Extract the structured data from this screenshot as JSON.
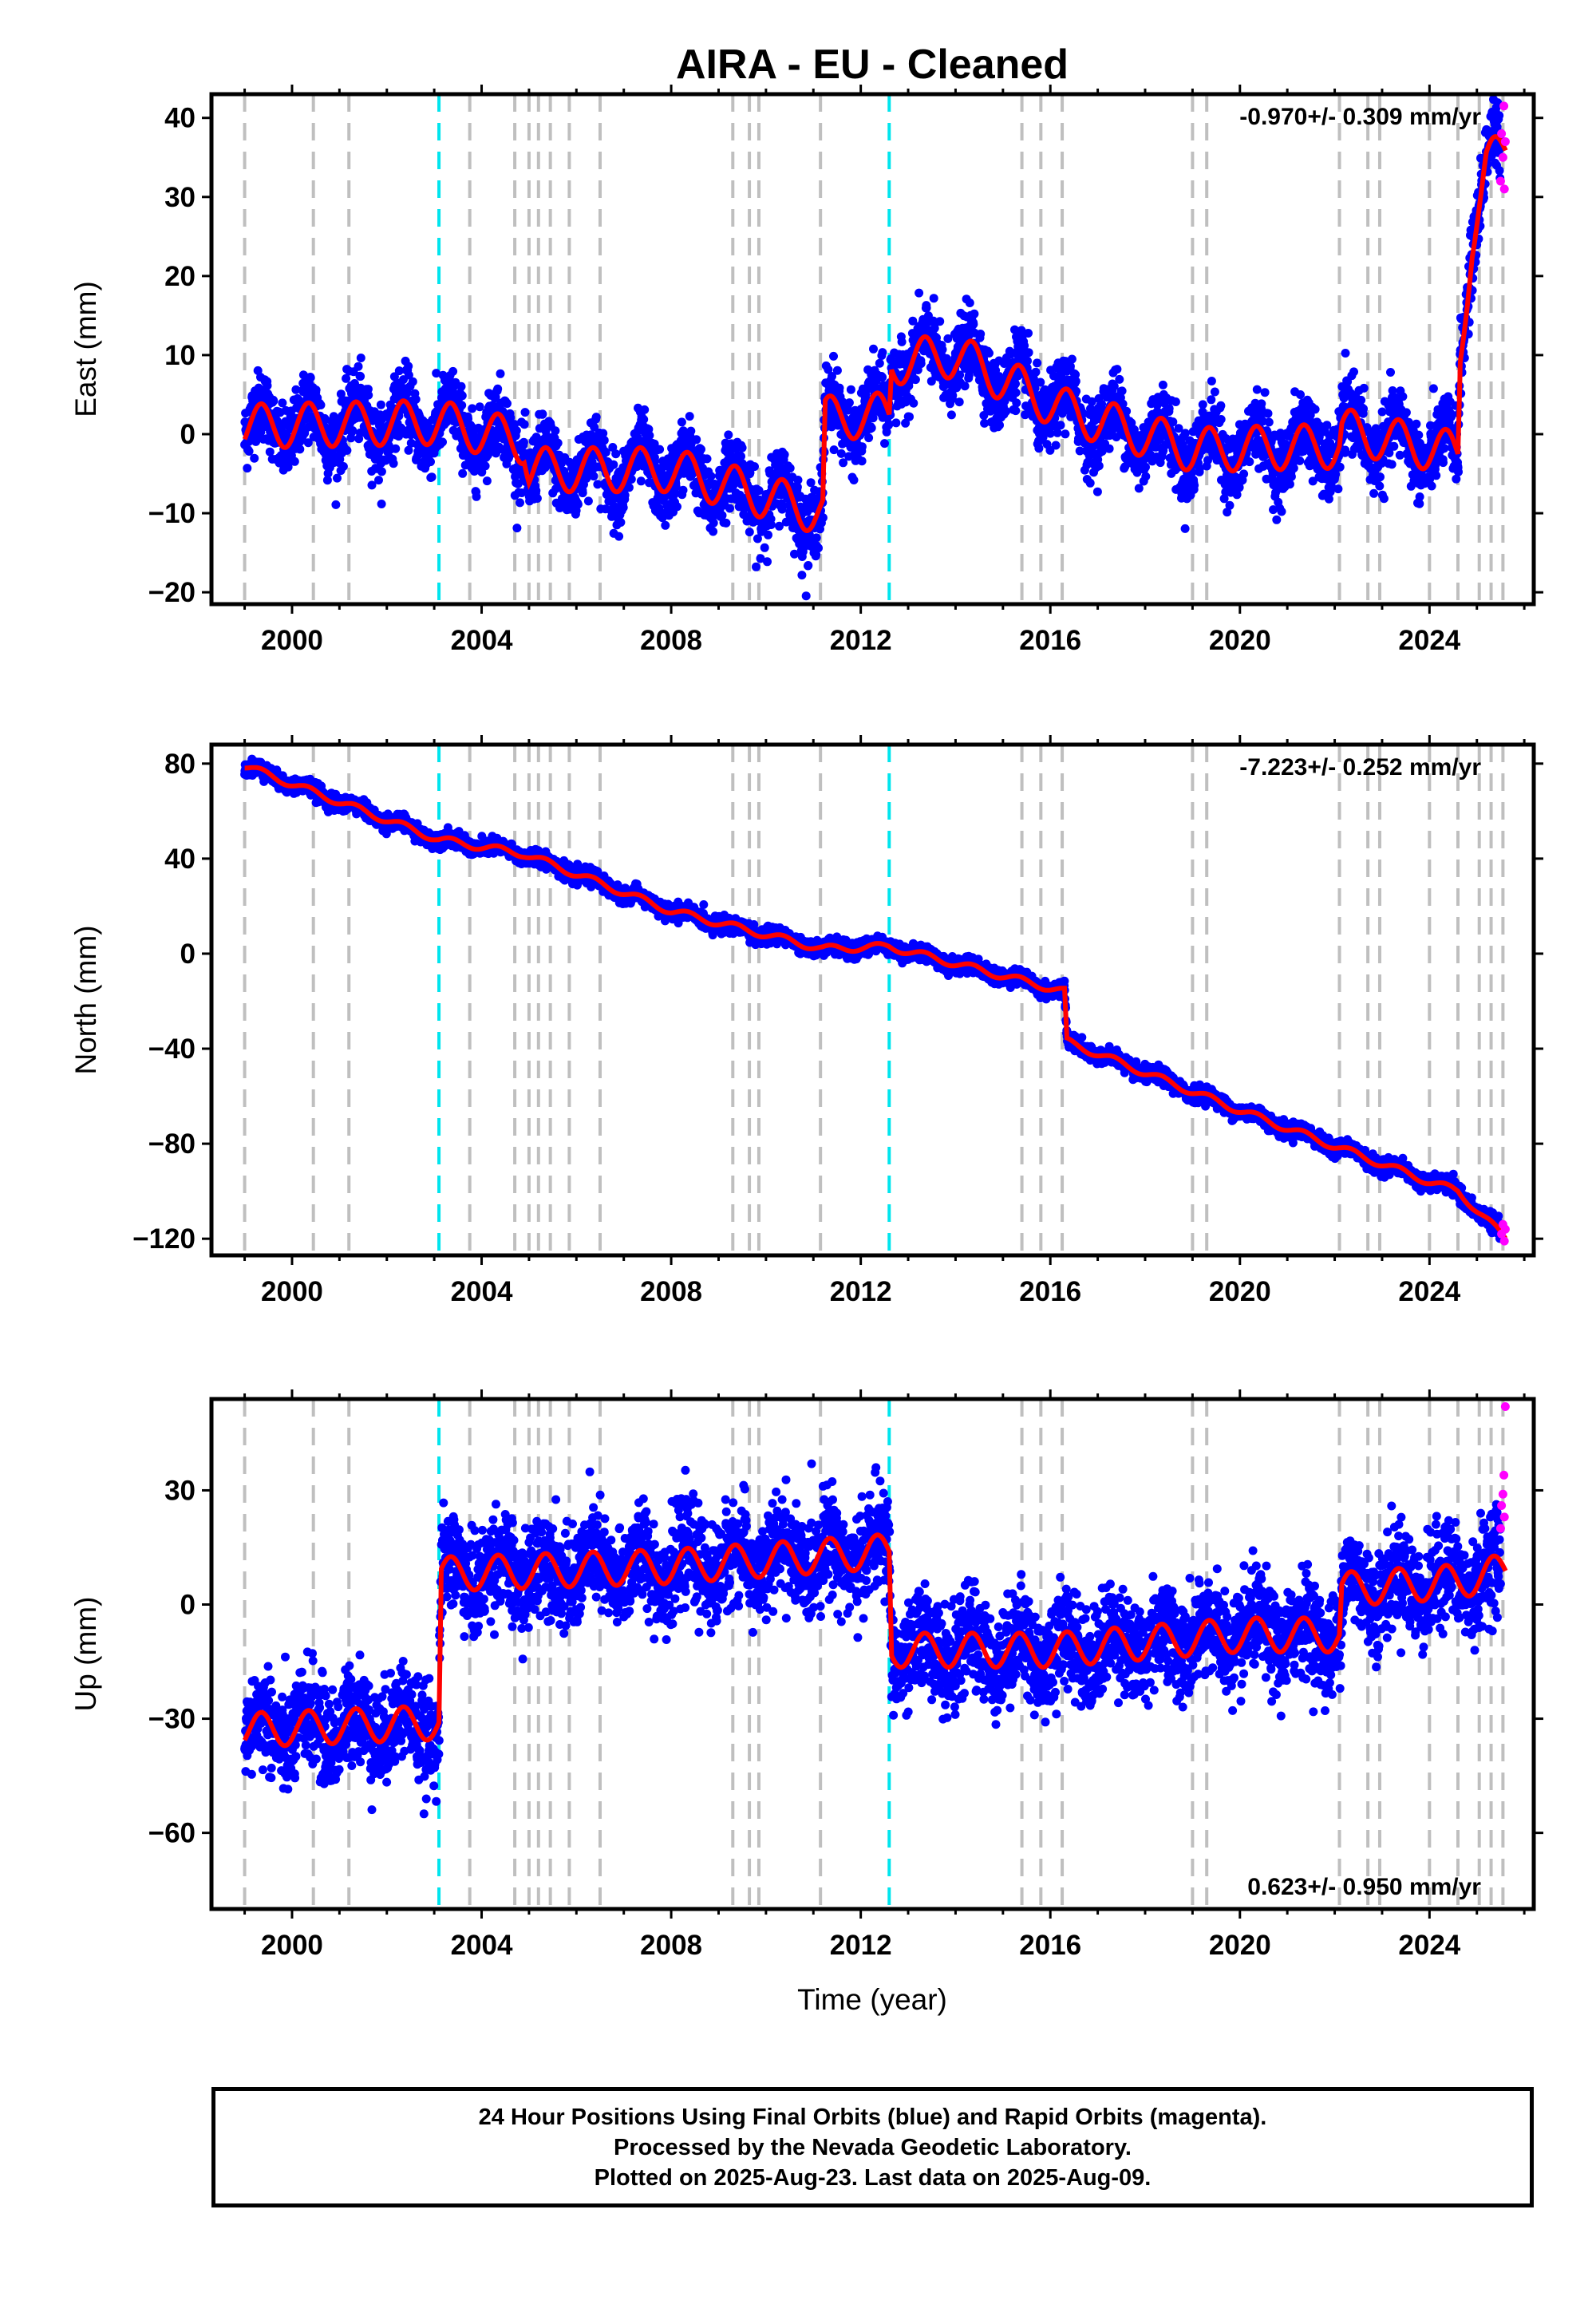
{
  "title": "AIRA  - EU - Cleaned",
  "xlabel": "Time (year)",
  "footer": {
    "line1": "24 Hour Positions Using Final Orbits (blue) and Rapid Orbits (magenta).",
    "line2": "Processed by the Nevada Geodetic Laboratory.",
    "line3": "Plotted on 2025-Aug-23. Last data on 2025-Aug-09."
  },
  "colors": {
    "final_orbits": "#0000ff",
    "rapid_orbits": "#ff00ff",
    "model": "#ff0000",
    "event_gray": "#bfbfbf",
    "event_cyan": "#00e5ee"
  },
  "chart_data": [
    {
      "type": "scatter",
      "component": "east",
      "ylabel": "East (mm)",
      "rate_label": "-0.970+/- 0.309 mm/yr",
      "rate_position": "top-right",
      "xlim": [
        1998.3,
        2026.2
      ],
      "ylim": [
        -21.5,
        43
      ],
      "yticks": [
        -20,
        -10,
        0,
        10,
        20,
        30,
        40
      ],
      "ytick_labels": [
        "−20",
        "−10",
        "0",
        "10",
        "20",
        "30",
        "40"
      ],
      "xticks": [
        2000,
        2004,
        2008,
        2012,
        2016,
        2020,
        2024
      ],
      "xtick_labels": [
        "2000",
        "2004",
        "2008",
        "2012",
        "2016",
        "2020",
        "2024"
      ],
      "trend": [
        [
          1999.0,
          1.0
        ],
        [
          2003.1,
          1.5
        ],
        [
          2004.9,
          -1.0
        ],
        [
          2005.0,
          -4.5
        ],
        [
          2008.0,
          -4.5
        ],
        [
          2011.2,
          -10.0
        ],
        [
          2011.25,
          2.0
        ],
        [
          2012.6,
          2.5
        ],
        [
          2012.65,
          9.0
        ],
        [
          2014.0,
          10.0
        ],
        [
          2016.3,
          3.0
        ],
        [
          2019.0,
          -2.0
        ],
        [
          2022.1,
          -1.5
        ],
        [
          2022.15,
          0.5
        ],
        [
          2024.6,
          -2.5
        ],
        [
          2024.65,
          10.0
        ],
        [
          2024.9,
          25.0
        ],
        [
          2025.2,
          34.0
        ],
        [
          2025.61,
          36.0
        ]
      ],
      "seasonal_amplitude": 2.8,
      "scatter_sigma": 2.2,
      "rapid_points": [
        [
          2025.5,
          32
        ],
        [
          2025.52,
          38
        ],
        [
          2025.55,
          35
        ],
        [
          2025.57,
          41.5
        ],
        [
          2025.58,
          31
        ],
        [
          2025.6,
          37
        ]
      ]
    },
    {
      "type": "scatter",
      "component": "north",
      "ylabel": "North (mm)",
      "rate_label": "-7.223+/- 0.252 mm/yr",
      "rate_position": "top-right",
      "xlim": [
        1998.3,
        2026.2
      ],
      "ylim": [
        -127,
        88
      ],
      "yticks": [
        -120,
        -80,
        -40,
        0,
        40,
        80
      ],
      "ytick_labels": [
        "−120",
        "−80",
        "−40",
        "0",
        "40",
        "80"
      ],
      "xticks": [
        2000,
        2004,
        2008,
        2012,
        2016,
        2020,
        2024
      ],
      "xtick_labels": [
        "2000",
        "2004",
        "2008",
        "2012",
        "2016",
        "2020",
        "2024"
      ],
      "trend": [
        [
          1999.0,
          79.0
        ],
        [
          2003.1,
          48.0
        ],
        [
          2004.9,
          42.0
        ],
        [
          2008.0,
          18.0
        ],
        [
          2011.2,
          2.0
        ],
        [
          2012.6,
          3.0
        ],
        [
          2016.3,
          -16.0
        ],
        [
          2016.35,
          -37.0
        ],
        [
          2020.0,
          -66.0
        ],
        [
          2024.0,
          -96.0
        ],
        [
          2024.6,
          -100.0
        ],
        [
          2025.61,
          -120.0
        ]
      ],
      "seasonal_amplitude": 1.5,
      "scatter_sigma": 1.6,
      "rapid_points": [
        [
          2025.52,
          -118
        ],
        [
          2025.55,
          -114
        ],
        [
          2025.58,
          -121
        ],
        [
          2025.6,
          -116
        ]
      ]
    },
    {
      "type": "scatter",
      "component": "up",
      "ylabel": "Up (mm)",
      "rate_label": "0.623+/- 0.950 mm/yr",
      "rate_position": "bottom-right",
      "xlim": [
        1998.3,
        2026.2
      ],
      "ylim": [
        -80,
        54
      ],
      "yticks": [
        -60,
        -30,
        0,
        30
      ],
      "ytick_labels": [
        "−60",
        "−30",
        "0",
        "30"
      ],
      "xticks": [
        2000,
        2004,
        2008,
        2012,
        2016,
        2020,
        2024
      ],
      "xtick_labels": [
        "2000",
        "2004",
        "2008",
        "2012",
        "2016",
        "2020",
        "2024"
      ],
      "trend": [
        [
          1999.0,
          -33.0
        ],
        [
          2003.1,
          -31.0
        ],
        [
          2003.15,
          8.0
        ],
        [
          2008.0,
          10.0
        ],
        [
          2012.6,
          14.0
        ],
        [
          2012.65,
          -12.0
        ],
        [
          2016.0,
          -12.0
        ],
        [
          2020.0,
          -8.0
        ],
        [
          2022.1,
          -8.0
        ],
        [
          2022.15,
          4.0
        ],
        [
          2024.6,
          6.0
        ],
        [
          2025.61,
          9.0
        ]
      ],
      "seasonal_amplitude": 4.5,
      "scatter_sigma": 6.5,
      "rapid_points": [
        [
          2025.5,
          20
        ],
        [
          2025.52,
          26
        ],
        [
          2025.55,
          29
        ],
        [
          2025.57,
          34
        ],
        [
          2025.6,
          52
        ],
        [
          2025.58,
          23
        ]
      ]
    }
  ],
  "events": {
    "gray": [
      1999.0,
      2000.45,
      2001.2,
      2003.75,
      2004.7,
      2005.0,
      2005.2,
      2005.45,
      2005.85,
      2006.5,
      2009.3,
      2009.65,
      2009.85,
      2011.15,
      2015.4,
      2015.8,
      2016.25,
      2019.0,
      2019.3,
      2022.1,
      2022.7,
      2022.95,
      2024.0,
      2024.6,
      2025.05,
      2025.3,
      2025.55
    ],
    "cyan": [
      2003.1,
      2012.6
    ]
  }
}
